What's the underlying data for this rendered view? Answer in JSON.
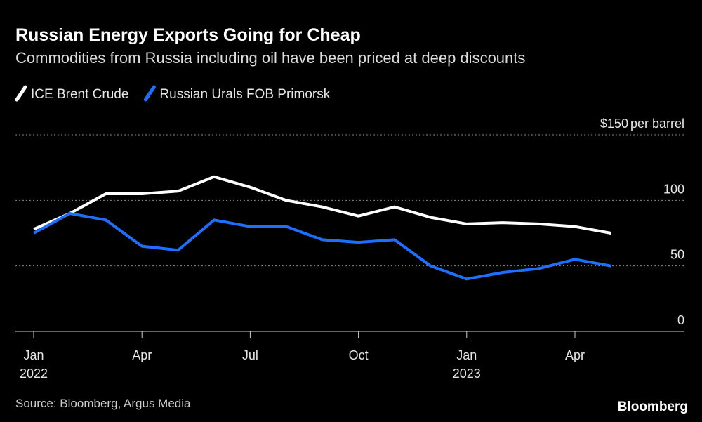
{
  "chart_data": {
    "type": "line",
    "title": "Russian Energy Exports Going for Cheap",
    "subtitle": "Commodities from Russia including oil have been priced at deep discounts",
    "x": [
      "2022-01",
      "2022-02",
      "2022-03",
      "2022-04",
      "2022-05",
      "2022-06",
      "2022-07",
      "2022-08",
      "2022-09",
      "2022-10",
      "2022-11",
      "2022-12",
      "2023-01",
      "2023-02",
      "2023-03",
      "2023-04",
      "2023-05"
    ],
    "series": [
      {
        "name": "ICE Brent Crude",
        "color": "#ffffff",
        "values": [
          78,
          90,
          105,
          105,
          107,
          118,
          110,
          100,
          95,
          88,
          95,
          87,
          82,
          83,
          82,
          80,
          75
        ]
      },
      {
        "name": "Russian Urals FOB Primorsk",
        "color": "#1f6fff",
        "values": [
          75,
          90,
          85,
          65,
          62,
          85,
          80,
          80,
          70,
          68,
          70,
          50,
          40,
          45,
          48,
          55,
          50
        ]
      }
    ],
    "ylim": [
      0,
      150
    ],
    "yticks": [
      0,
      50,
      100,
      {
        "value": 150,
        "label": "$150"
      }
    ],
    "y_unit": "per barrel",
    "xticks": [
      {
        "value": "2022-01",
        "label": "Jan",
        "year": "2022"
      },
      {
        "value": "2022-04",
        "label": "Apr"
      },
      {
        "value": "2022-07",
        "label": "Jul"
      },
      {
        "value": "2022-10",
        "label": "Oct"
      },
      {
        "value": "2023-01",
        "label": "Jan",
        "year": "2023"
      },
      {
        "value": "2023-04",
        "label": "Apr"
      }
    ],
    "grid": true,
    "legend": "top-left",
    "source": "Source: Bloomberg, Argus Media",
    "brand": "Bloomberg"
  }
}
